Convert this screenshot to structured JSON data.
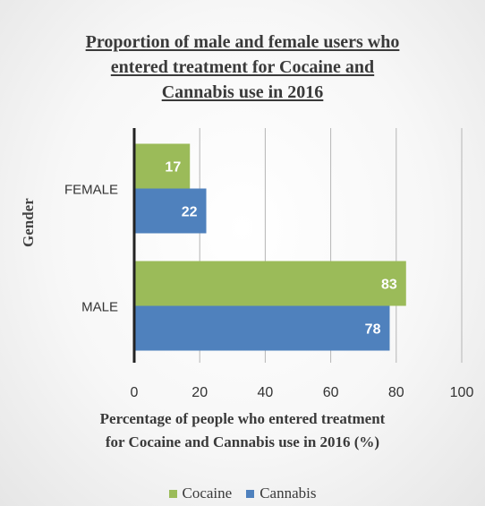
{
  "chart_data": {
    "type": "bar",
    "orientation": "horizontal",
    "title": [
      "Proportion of male and female users who",
      "entered treatment for Cocaine and",
      "Cannabis use in 2016"
    ],
    "xlabel": [
      "Percentage of people who entered treatment",
      "for Cocaine and Cannabis use in 2016 (%)"
    ],
    "ylabel": "Gender",
    "categories": [
      "FEMALE",
      "MALE"
    ],
    "series": [
      {
        "name": "Cocaine",
        "color": "#9bbb59",
        "values": [
          17,
          83
        ]
      },
      {
        "name": "Cannabis",
        "color": "#4f81bd",
        "values": [
          22,
          78
        ]
      }
    ],
    "xlim": [
      0,
      100
    ],
    "xticks": [
      0,
      20,
      40,
      60,
      80,
      100
    ],
    "grid": true,
    "legend_position": "bottom"
  }
}
